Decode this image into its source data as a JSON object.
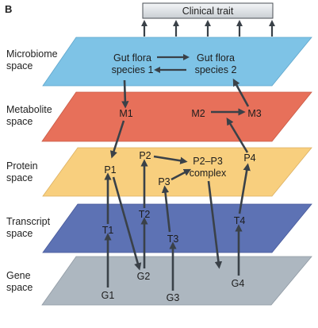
{
  "panel_letter": "B",
  "trait": {
    "label": "Clinical trait"
  },
  "layers": [
    {
      "id": "microbiome",
      "label_line1": "Microbiome",
      "label_line2": "space",
      "color": "#7ec3e6"
    },
    {
      "id": "metabolite",
      "label_line1": "Metabolite",
      "label_line2": "space",
      "color": "#e7705a"
    },
    {
      "id": "protein",
      "label_line1": "Protein",
      "label_line2": "space",
      "color": "#f8cf7e"
    },
    {
      "id": "transcript",
      "label_line1": "Transcript",
      "label_line2": "space",
      "color": "#5d72b4"
    },
    {
      "id": "gene",
      "label_line1": "Gene",
      "label_line2": "space",
      "color": "#adb7c0"
    }
  ],
  "nodes": {
    "gf1_line1": "Gut flora",
    "gf1_line2": "species 1",
    "gf2_line1": "Gut flora",
    "gf2_line2": "species 2",
    "m1": "M1",
    "m2": "M2",
    "m3": "M3",
    "p1": "P1",
    "p2": "P2",
    "p3": "P3",
    "p4": "P4",
    "complex_line1": "P2–P3",
    "complex_line2": "complex",
    "t1": "T1",
    "t2": "T2",
    "t3": "T3",
    "t4": "T4",
    "g1": "G1",
    "g2": "G2",
    "g3": "G3",
    "g4": "G4"
  },
  "colors": {
    "arrow": "#3a4148",
    "trait_fill": "#e4e7ea"
  }
}
